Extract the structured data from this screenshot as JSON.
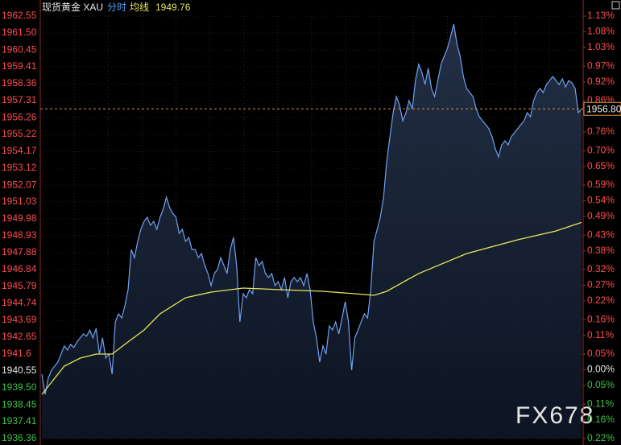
{
  "chart_data": {
    "type": "line",
    "title": "现货黄金 XAU",
    "avg_value": 1949.76,
    "last_price": {
      "value": 1956.8,
      "label": "1956.80"
    },
    "watermark": "FX678",
    "xlim": [
      0,
      169
    ],
    "ylim": [
      1936.36,
      1962.55
    ],
    "yticks": [
      1962.55,
      {
        "value": 1961.5,
        "label": "1961.50"
      },
      1960.45,
      1959.41,
      1958.36,
      1957.31,
      1956.26,
      1955.22,
      1954.17,
      1953.12,
      1952.07,
      1951.03,
      1949.98,
      1948.93,
      1947.88,
      1946.84,
      1945.79,
      1944.74,
      1943.69,
      1942.65,
      1941.6,
      1940.55,
      {
        "value": 1939.5,
        "label": "1939.50"
      },
      1938.45,
      1937.41,
      1936.36
    ],
    "y2lim": [
      -0.22,
      1.13
    ],
    "y2ticks": [
      {
        "value": 1.13,
        "label": "1.13%"
      },
      {
        "value": 1.08,
        "label": "1.08%"
      },
      {
        "value": 1.03,
        "label": "1.03%"
      },
      {
        "value": 0.97,
        "label": "0.97%"
      },
      {
        "value": 0.92,
        "label": "0.92%"
      },
      {
        "value": 0.86,
        "label": "0.86%"
      },
      {
        "value": 0.76,
        "label": "0.76%"
      },
      {
        "value": 0.7,
        "label": "0.70%"
      },
      {
        "value": 0.65,
        "label": "0.65%"
      },
      {
        "value": 0.59,
        "label": "0.59%"
      },
      {
        "value": 0.54,
        "label": "0.54%"
      },
      {
        "value": 0.49,
        "label": "0.49%"
      },
      {
        "value": 0.43,
        "label": "0.43%"
      },
      {
        "value": 0.38,
        "label": "0.38%"
      },
      {
        "value": 0.32,
        "label": "0.32%"
      },
      {
        "value": 0.27,
        "label": "0.27%"
      },
      {
        "value": 0.22,
        "label": "0.22%"
      },
      {
        "value": 0.16,
        "label": "0.16%"
      },
      {
        "value": 0.11,
        "label": "0.11%"
      },
      {
        "value": 0.05,
        "label": "0.05%"
      },
      {
        "value": 0,
        "label": "0.00%"
      },
      {
        "value": -0.05,
        "label": "0.05%"
      },
      {
        "value": -0.11,
        "label": "0.11%"
      },
      {
        "value": -0.16,
        "label": "0.16%"
      },
      {
        "value": -0.22,
        "label": "0.22%"
      }
    ],
    "grid": true,
    "series": [
      {
        "name": "分时",
        "color": "#6ea2f2",
        "values": [
          1940.35,
          1939.1,
          1940.1,
          1940.6,
          1940.85,
          1941.1,
          1941.6,
          1942.1,
          1941.85,
          1942.2,
          1942.0,
          1942.35,
          1942.6,
          1942.85,
          1942.7,
          1943.09,
          1942.6,
          1943.19,
          1941.6,
          1942.6,
          1941.35,
          1941.6,
          1940.35,
          1943.59,
          1944.09,
          1943.84,
          1944.59,
          1945.59,
          1948.08,
          1947.58,
          1948.58,
          1949.33,
          1949.83,
          1950.08,
          1949.58,
          1949.83,
          1949.33,
          1950.08,
          1950.58,
          1951.33,
          1950.68,
          1950.33,
          1950.08,
          1949.08,
          1949.33,
          1948.58,
          1948.83,
          1948.08,
          1948.08,
          1947.58,
          1947.83,
          1947.09,
          1946.59,
          1945.84,
          1946.59,
          1946.84,
          1947.58,
          1947.09,
          1946.59,
          1948.08,
          1948.83,
          1947.09,
          1943.59,
          1945.34,
          1945.09,
          1945.59,
          1945.34,
          1947.58,
          1947.09,
          1947.34,
          1946.59,
          1946.34,
          1946.59,
          1945.84,
          1946.09,
          1945.59,
          1946.34,
          1945.09,
          1946.09,
          1946.34,
          1946.09,
          1946.34,
          1945.84,
          1946.59,
          1945.59,
          1943.59,
          1942.6,
          1941.1,
          1942.1,
          1941.6,
          1943.34,
          1943.09,
          1943.59,
          1942.85,
          1943.84,
          1944.84,
          1943.59,
          1940.6,
          1942.6,
          1943.09,
          1943.59,
          1944.09,
          1943.84,
          1945.59,
          1948.58,
          1949.33,
          1950.08,
          1951.33,
          1953.57,
          1955.07,
          1956.56,
          1957.56,
          1957.06,
          1956.06,
          1956.56,
          1957.31,
          1956.81,
          1958.56,
          1959.56,
          1959.06,
          1958.31,
          1959.31,
          1958.06,
          1957.56,
          1958.56,
          1959.56,
          1960.06,
          1960.55,
          1961.3,
          1962.05,
          1960.8,
          1960.06,
          1958.81,
          1958.06,
          1957.81,
          1957.56,
          1956.81,
          1956.31,
          1956.06,
          1955.82,
          1955.57,
          1955.07,
          1954.32,
          1953.82,
          1954.57,
          1954.82,
          1954.57,
          1955.07,
          1955.32,
          1955.57,
          1955.82,
          1956.06,
          1956.56,
          1956.31,
          1957.31,
          1957.81,
          1958.06,
          1957.81,
          1958.31,
          1958.56,
          1958.81,
          1958.56,
          1958.31,
          1958.66,
          1958.16,
          1958.56,
          1958.41,
          1958.06,
          1956.56,
          1956.8
        ]
      },
      {
        "name": "均线",
        "color": "#e6e65a",
        "x": [
          0,
          2,
          7,
          12,
          17,
          22,
          27,
          32,
          37,
          45,
          53,
          63,
          75,
          88,
          98,
          104,
          108,
          118,
          133,
          149,
          161,
          169
        ],
        "values": [
          1939.1,
          1939.6,
          1940.85,
          1941.35,
          1941.6,
          1941.6,
          1942.35,
          1943.09,
          1944.09,
          1945.09,
          1945.44,
          1945.69,
          1945.59,
          1945.49,
          1945.34,
          1945.24,
          1945.49,
          1946.59,
          1947.83,
          1948.68,
          1949.23,
          1949.76
        ]
      }
    ]
  }
}
